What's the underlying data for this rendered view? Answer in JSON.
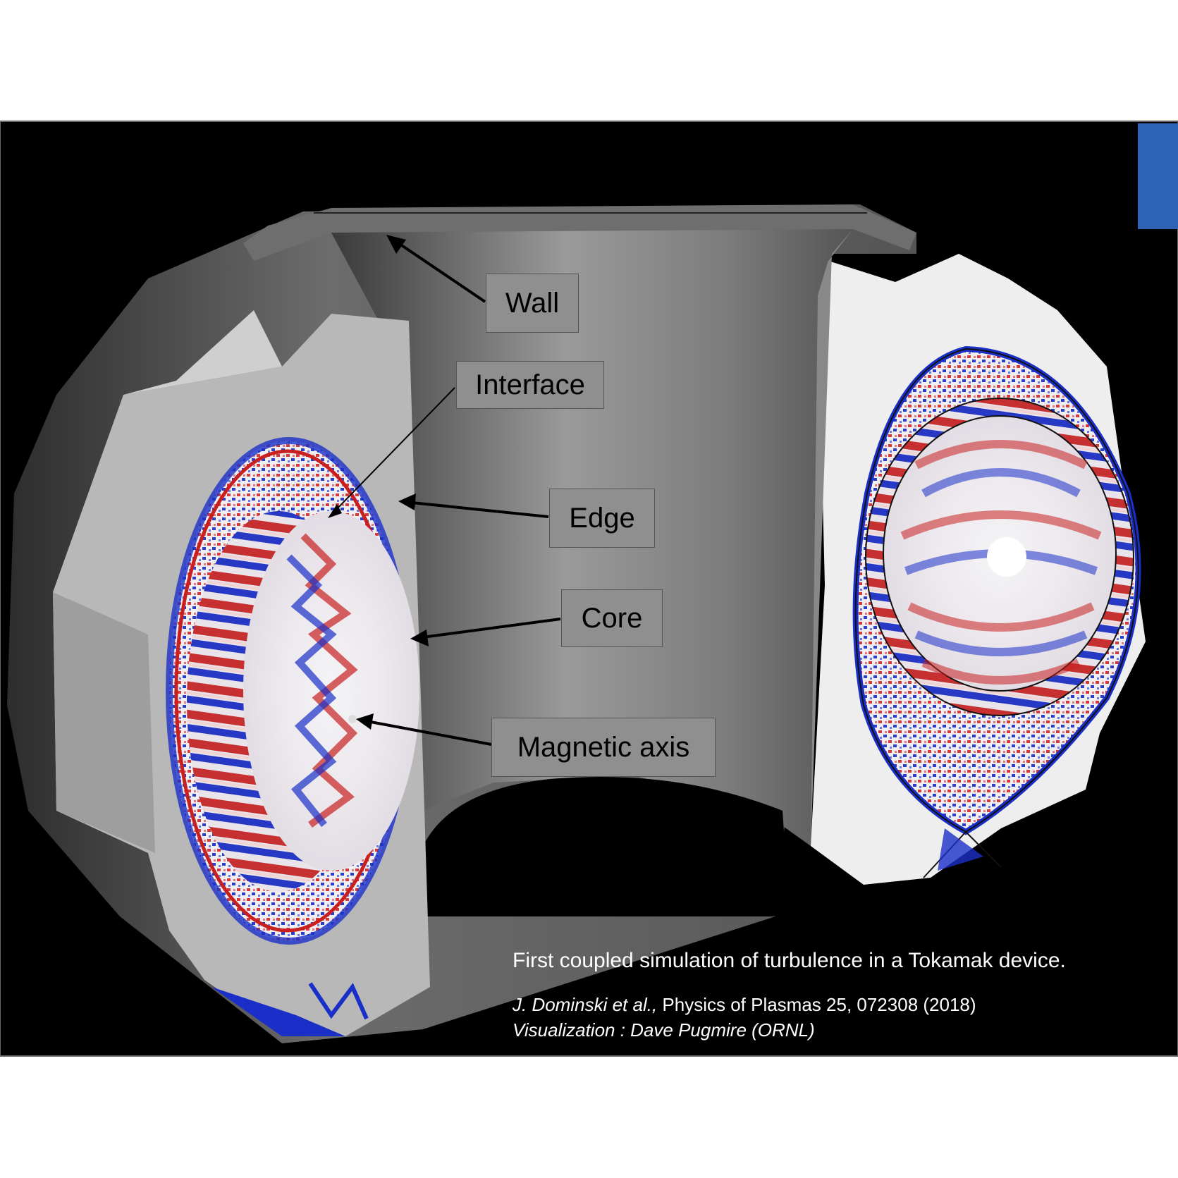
{
  "labels": {
    "wall": "Wall",
    "interface": "Interface",
    "edge": "Edge",
    "core": "Core",
    "magnetic_axis": "Magnetic axis"
  },
  "caption": {
    "title": "First coupled simulation of turbulence in a Tokamak device.",
    "authors": "J. Dominski et al.,",
    "journal": " Physics of Plasmas 25, 072308 (2018)",
    "visualization": "Visualization : Dave Pugmire (ORNL)"
  },
  "colors": {
    "background": "#000000",
    "wall": "#8c8c8c",
    "positive": "#d01c1c",
    "negative": "#1a2fc8",
    "neutral": "#f2f2f4"
  }
}
